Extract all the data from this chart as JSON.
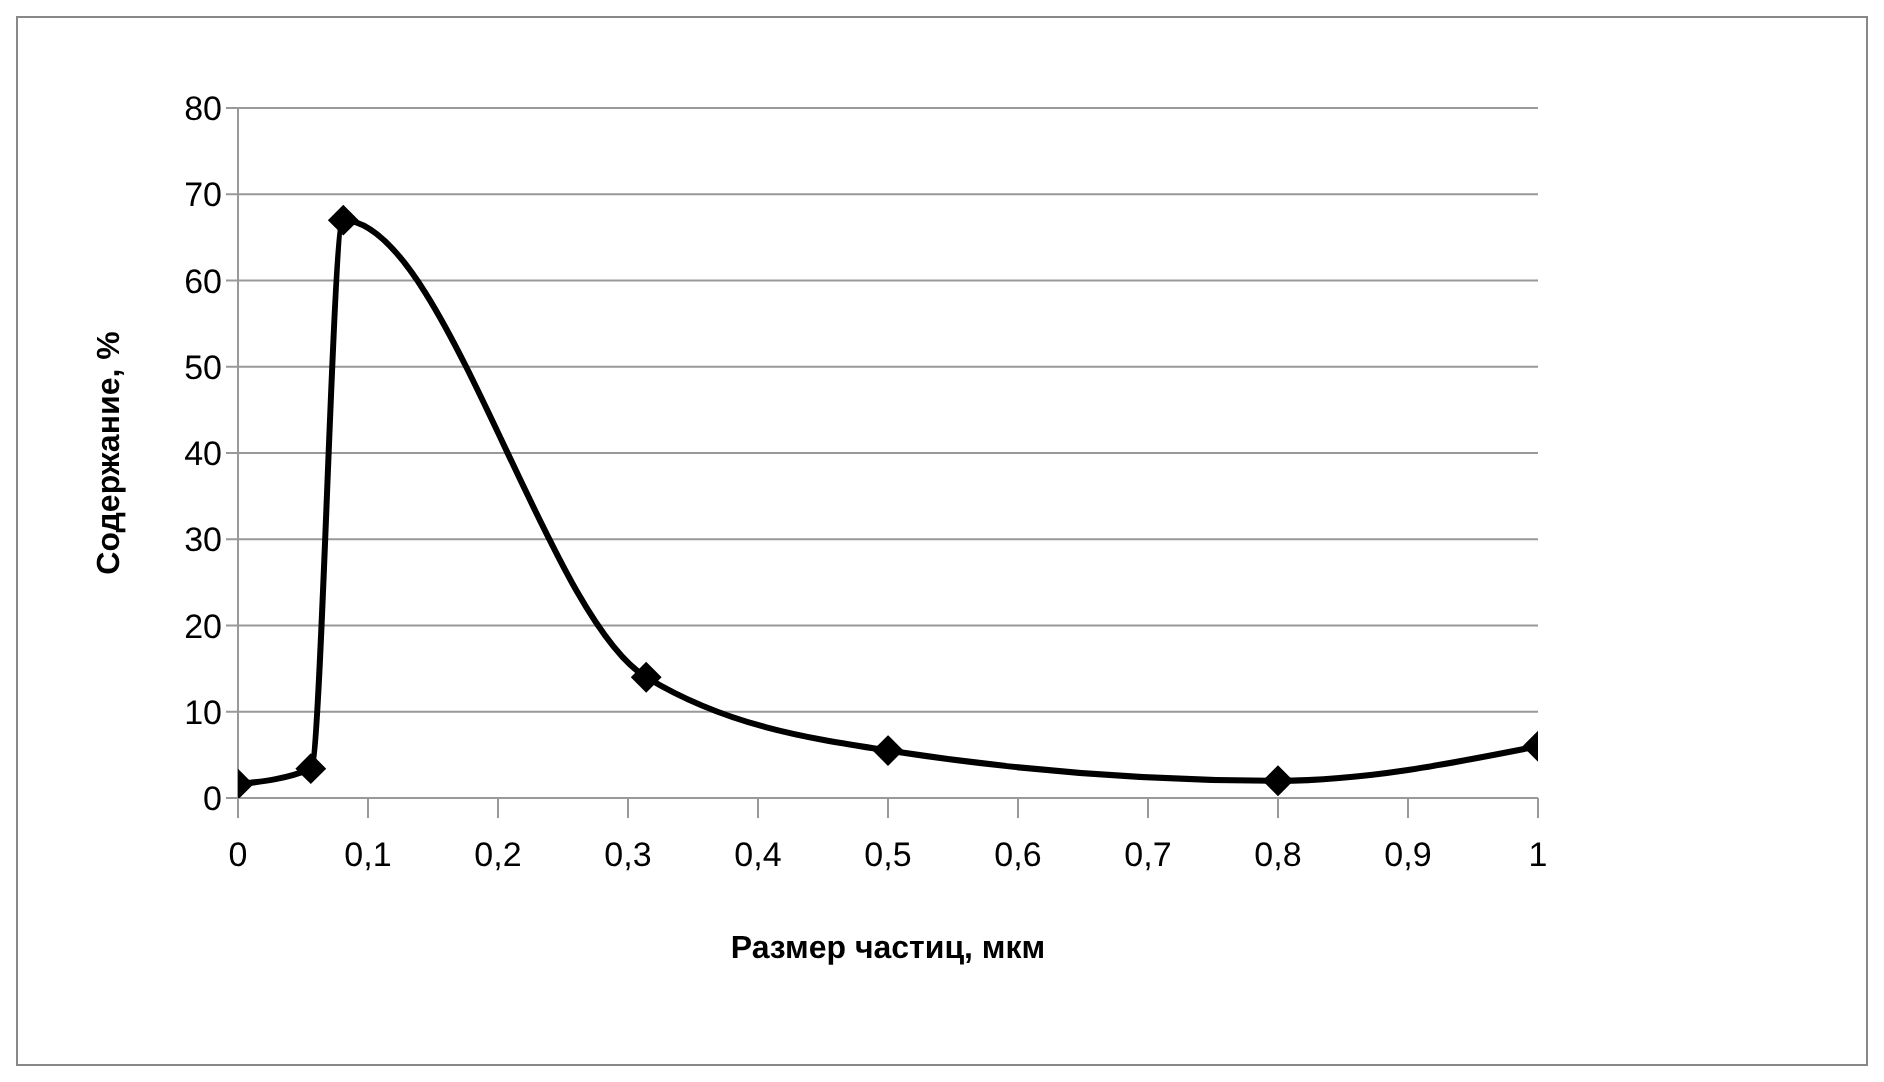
{
  "chart_data": {
    "type": "line",
    "xlabel": "Размер частиц,  мкм",
    "ylabel": "Содержание, %",
    "x": [
      0,
      0.056,
      0.081,
      0.314,
      0.5,
      0.8,
      1
    ],
    "series": [
      {
        "color": "#000000",
        "values": [
          1.6,
          3.4,
          67,
          14,
          5.5,
          2,
          6
        ]
      }
    ],
    "xlim": [
      0,
      1
    ],
    "xticks": [
      0,
      {
        "value": 0.1,
        "label": "0,1"
      },
      {
        "value": 0.2,
        "label": "0,2"
      },
      {
        "value": 0.3,
        "label": "0,3"
      },
      {
        "value": 0.4,
        "label": "0,4"
      },
      {
        "value": 0.5,
        "label": "0,5"
      },
      {
        "value": 0.6,
        "label": "0,6"
      },
      {
        "value": 0.7,
        "label": "0,7"
      },
      {
        "value": 0.8,
        "label": "0,8"
      },
      {
        "value": 0.9,
        "label": "0,9"
      },
      1
    ],
    "ylim": [
      0,
      80
    ],
    "yticks": [
      0,
      10,
      20,
      30,
      40,
      50,
      60,
      70,
      80
    ],
    "grid": "y",
    "legend": false,
    "marker": "diamond",
    "line_style": "solid"
  }
}
